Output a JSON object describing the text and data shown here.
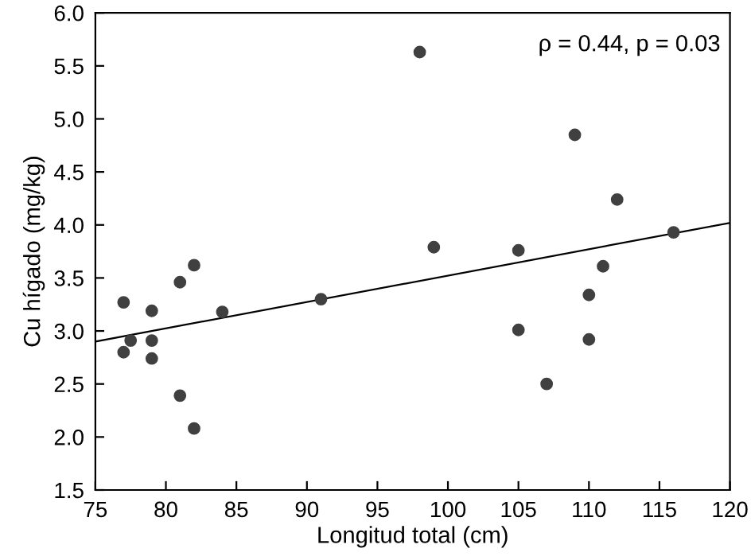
{
  "chart_data": {
    "type": "scatter",
    "xlabel": "Longitud total (cm)",
    "ylabel": "Cu hígado (mg/kg)",
    "xlim": [
      75,
      120
    ],
    "xticks": [
      75,
      80,
      85,
      90,
      95,
      100,
      105,
      110,
      115,
      120
    ],
    "ylim": [
      1.5,
      6.0
    ],
    "yticks": [
      {
        "value": 1.5,
        "label": "1.5"
      },
      {
        "value": 2.0,
        "label": "2.0"
      },
      {
        "value": 2.5,
        "label": "2.5"
      },
      {
        "value": 3.0,
        "label": "3.0"
      },
      {
        "value": 3.5,
        "label": "3.5"
      },
      {
        "value": 4.0,
        "label": "4.0"
      },
      {
        "value": 4.5,
        "label": "4.5"
      },
      {
        "value": 5.0,
        "label": "5.0"
      },
      {
        "value": 5.5,
        "label": "5.5"
      },
      {
        "value": 6.0,
        "label": "6.0"
      }
    ],
    "grid": false,
    "legend": false,
    "annotations": [
      "ρ = 0.44, p = 0.03"
    ],
    "series": [
      {
        "type": "scatter",
        "color": "#404040",
        "marker": "circle",
        "x": [
          77,
          77,
          77.5,
          79,
          79,
          79,
          81,
          81,
          82,
          82,
          84,
          91,
          98,
          99,
          105,
          105,
          107,
          109,
          110,
          110,
          111,
          112,
          116
        ],
        "values": [
          3.27,
          2.8,
          2.91,
          3.19,
          2.91,
          2.74,
          3.46,
          2.39,
          3.62,
          2.08,
          3.18,
          3.3,
          5.63,
          3.79,
          3.76,
          3.01,
          2.5,
          4.85,
          3.34,
          2.92,
          3.61,
          4.24,
          3.93
        ]
      },
      {
        "type": "line",
        "color": "#000000",
        "x": [
          75,
          120
        ],
        "values": [
          2.9,
          4.02
        ]
      }
    ]
  }
}
